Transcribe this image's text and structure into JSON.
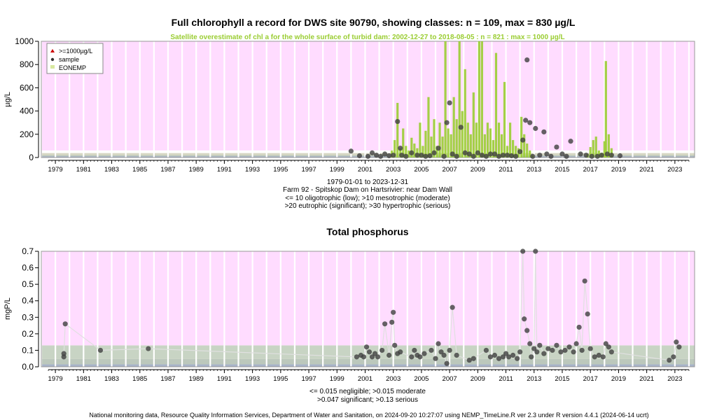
{
  "chart_data": [
    {
      "type": "scatter",
      "title": "Full chlorophyll a record for DWS site 90790, showing classes: n = 109, max = 830 µg/L",
      "subtitle": "Satellite overestimate of chl a for the whole surface of turbid dam: 2002-12-27 to 2018-08-05 : n = 821 : max = 1000 µg/L",
      "ylabel": "µg/L",
      "xlim": [
        1978,
        2024.4
      ],
      "ylim": [
        0,
        1000
      ],
      "yticks": [
        0,
        200,
        400,
        600,
        800,
        1000
      ],
      "xticks": [
        "1979",
        "1981",
        "1983",
        "1985",
        "1987",
        "1989",
        "1991",
        "1993",
        "1995",
        "1997",
        "1999",
        "2001",
        "2003",
        "2005",
        "2007",
        "2009",
        "2011",
        "2013",
        "2015",
        "2017",
        "2019",
        "2021",
        "2023"
      ],
      "class_bands": [
        {
          "from": 0,
          "to": 10,
          "color": "#a8b4c8"
        },
        {
          "from": 10,
          "to": 20,
          "color": "#bcc8bc"
        },
        {
          "from": 20,
          "to": 30,
          "color": "#d8d8c4"
        },
        {
          "from": 30,
          "to": 1000,
          "color": "#ffdcff"
        }
      ],
      "legend": {
        "position": "top-left",
        "items": [
          {
            "label": ">=1000µg/L",
            "symbol": "triangle",
            "color": "#cc0000"
          },
          {
            "label": "sample",
            "symbol": "dot",
            "color": "#333333"
          },
          {
            "label": "EONEMP",
            "symbol": "square",
            "color": "#d8e8a0"
          }
        ]
      },
      "satellite_series": {
        "color": "#9acd32",
        "x": [
          2002.9,
          2003.1,
          2003.3,
          2003.5,
          2003.7,
          2003.9,
          2004.1,
          2004.3,
          2004.5,
          2004.7,
          2004.9,
          2005.1,
          2005.3,
          2005.5,
          2005.7,
          2005.9,
          2006.1,
          2006.3,
          2006.5,
          2006.7,
          2006.9,
          2007.1,
          2007.3,
          2007.5,
          2007.7,
          2007.9,
          2008.1,
          2008.3,
          2008.5,
          2008.7,
          2008.9,
          2009.1,
          2009.3,
          2009.5,
          2009.7,
          2009.9,
          2010.1,
          2010.3,
          2010.5,
          2010.7,
          2010.9,
          2011.1,
          2011.3,
          2011.5,
          2011.7,
          2011.9,
          2012.1,
          2012.3,
          2012.5,
          2012.7,
          2012.9,
          2016.8,
          2017.0,
          2017.2,
          2017.4,
          2017.6,
          2017.8,
          2018.0,
          2018.1,
          2018.3,
          2018.5
        ],
        "values": [
          60,
          150,
          470,
          80,
          250,
          100,
          60,
          170,
          120,
          80,
          300,
          100,
          230,
          520,
          180,
          330,
          100,
          300,
          180,
          1000,
          250,
          200,
          520,
          330,
          1000,
          400,
          760,
          300,
          200,
          560,
          300,
          1000,
          1000,
          200,
          300,
          250,
          150,
          900,
          300,
          200,
          650,
          100,
          300,
          150,
          100,
          80,
          350,
          200,
          120,
          60,
          20,
          30,
          90,
          150,
          180,
          60,
          40,
          140,
          830,
          200,
          80
        ]
      },
      "samples": {
        "color": "#404040",
        "x": [
          2000.0,
          2000.6,
          2001.2,
          2001.5,
          2001.8,
          2002.1,
          2002.4,
          2002.7,
          2003.0,
          2003.3,
          2003.5,
          2003.6,
          2003.9,
          2004.3,
          2004.7,
          2005.0,
          2005.3,
          2005.6,
          2005.9,
          2006.2,
          2006.6,
          2006.8,
          2007.0,
          2007.2,
          2007.5,
          2007.8,
          2008.1,
          2008.4,
          2008.7,
          2009.0,
          2009.3,
          2009.6,
          2009.9,
          2010.2,
          2010.5,
          2010.8,
          2011.1,
          2011.4,
          2011.7,
          2012.0,
          2012.2,
          2012.4,
          2012.5,
          2012.7,
          2012.9,
          2013.1,
          2013.4,
          2013.7,
          2013.9,
          2014.2,
          2014.6,
          2015.0,
          2015.3,
          2015.6,
          2016.3,
          2016.7,
          2017.1,
          2017.5,
          2017.8,
          2018.2,
          2018.5,
          2019.1
        ],
        "values": [
          55,
          15,
          10,
          40,
          20,
          10,
          30,
          15,
          20,
          310,
          80,
          20,
          10,
          40,
          20,
          20,
          10,
          15,
          40,
          80,
          10,
          300,
          470,
          30,
          10,
          260,
          40,
          30,
          10,
          40,
          20,
          10,
          30,
          30,
          10,
          20,
          20,
          15,
          10,
          50,
          150,
          320,
          840,
          300,
          10,
          250,
          20,
          220,
          30,
          10,
          90,
          30,
          10,
          140,
          30,
          20,
          10,
          10,
          20,
          30,
          20,
          15
        ]
      }
    },
    {
      "type": "scatter",
      "title": "Total phosphorus",
      "ylabel": "mgP/L",
      "xlim": [
        1978,
        2024.4
      ],
      "ylim": [
        0,
        0.7
      ],
      "yticks": [
        0.0,
        0.1,
        0.2,
        0.3,
        0.4,
        0.5,
        0.6,
        0.7
      ],
      "xticks": [
        "1979",
        "1981",
        "1983",
        "1985",
        "1987",
        "1989",
        "1991",
        "1993",
        "1995",
        "1997",
        "1999",
        "2001",
        "2003",
        "2005",
        "2007",
        "2009",
        "2011",
        "2013",
        "2015",
        "2017",
        "2019",
        "2021",
        "2023"
      ],
      "class_bands": [
        {
          "from": 0,
          "to": 0.015,
          "color": "#a8b4c8"
        },
        {
          "from": 0.015,
          "to": 0.047,
          "color": "#bcc8bc"
        },
        {
          "from": 0.047,
          "to": 0.13,
          "color": "#c8d4c4"
        },
        {
          "from": 0.13,
          "to": 0.7,
          "color": "#ffdcff"
        }
      ],
      "samples": {
        "color": "#404040",
        "x": [
          1979.6,
          1979.6,
          1979.7,
          1982.2,
          1985.6,
          2000.4,
          2000.7,
          2000.9,
          2001.1,
          2001.3,
          2001.5,
          2001.7,
          2001.9,
          2002.2,
          2002.4,
          2002.7,
          2002.9,
          2003.0,
          2003.1,
          2003.3,
          2003.5,
          2004.3,
          2004.5,
          2004.7,
          2004.9,
          2005.2,
          2005.7,
          2006.0,
          2006.2,
          2006.4,
          2006.6,
          2006.8,
          2007.0,
          2007.2,
          2007.5,
          2008.4,
          2008.7,
          2009.6,
          2009.9,
          2010.2,
          2010.5,
          2010.8,
          2011.0,
          2011.2,
          2011.5,
          2011.8,
          2012.0,
          2012.2,
          2012.3,
          2012.5,
          2012.7,
          2012.8,
          2013.0,
          2013.1,
          2013.2,
          2013.4,
          2013.7,
          2014.0,
          2014.3,
          2014.6,
          2014.9,
          2015.2,
          2015.5,
          2015.8,
          2016.0,
          2016.2,
          2016.4,
          2016.6,
          2016.8,
          2017.0,
          2017.3,
          2017.6,
          2017.9,
          2018.1,
          2018.3,
          2018.5,
          2022.6,
          2022.9,
          2023.1,
          2023.3
        ],
        "values": [
          0.06,
          0.08,
          0.26,
          0.1,
          0.11,
          0.06,
          0.07,
          0.06,
          0.12,
          0.09,
          0.06,
          0.08,
          0.06,
          0.1,
          0.26,
          0.07,
          0.27,
          0.33,
          0.13,
          0.08,
          0.09,
          0.06,
          0.1,
          0.07,
          0.06,
          0.08,
          0.1,
          0.05,
          0.14,
          0.09,
          0.07,
          0.02,
          0.1,
          0.36,
          0.07,
          0.04,
          0.05,
          0.1,
          0.06,
          0.07,
          0.05,
          0.06,
          0.08,
          0.06,
          0.07,
          0.05,
          0.09,
          0.7,
          0.29,
          0.22,
          0.14,
          0.06,
          0.11,
          0.7,
          0.09,
          0.13,
          0.08,
          0.11,
          0.1,
          0.13,
          0.09,
          0.1,
          0.12,
          0.09,
          0.14,
          0.24,
          0.1,
          0.52,
          0.32,
          0.11,
          0.06,
          0.07,
          0.06,
          0.14,
          0.12,
          0.09,
          0.04,
          0.06,
          0.15,
          0.12
        ]
      }
    }
  ],
  "captions": {
    "chl_date_range": "1979-01-01 to 2023-12-31",
    "site_name": "Farm 92 - Spitskop Dam on Hartsrivier: near Dam Wall",
    "chl_classes_1": "<= 10 oligotrophic (low); >10 mesotrophic (moderate)",
    "chl_classes_2": ">20 eutrophic (significant); >30 hypertrophic (serious)",
    "tp_classes_1": "<= 0.015 negligible; >0.015 moderate",
    "tp_classes_2": ">0.047 significant; >0.13 serious",
    "footer": "National monitoring data, Resource Quality Information Services, Department of Water and Sanitation, on 2024-09-20 10:27:07 using NEMP_TimeLine.R ver 2.3 under R version 4.4.1 (2024-06-14 ucrt)"
  }
}
